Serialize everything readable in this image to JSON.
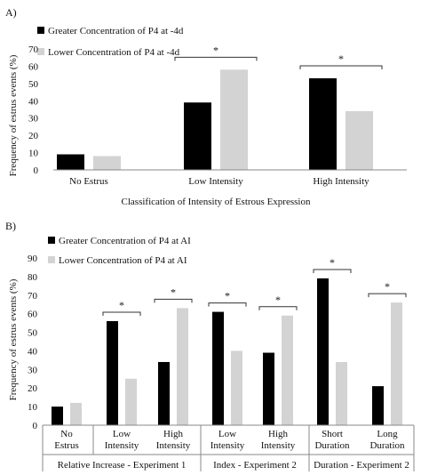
{
  "chart_data": [
    {
      "type": "bar",
      "panel_label": "A)",
      "categories": [
        "No Estrus",
        "Low Intensity",
        "High Intensity"
      ],
      "series": [
        {
          "name": "Greater Concentration of P4 at -4d",
          "values": [
            9,
            39,
            53
          ]
        },
        {
          "name": "Lower Concentration of P4 at -4d",
          "values": [
            8,
            58,
            34
          ]
        }
      ],
      "xlabel": "Classification of Intensity of Estrous Expression",
      "ylabel": "Frequency of estrus events (%)",
      "ylim": [
        0,
        70
      ],
      "yticks": [
        "0",
        "10",
        "20",
        "30",
        "40",
        "50",
        "60",
        "70"
      ],
      "significance": [
        {
          "category": "Low Intensity",
          "label": "*"
        },
        {
          "category": "High Intensity",
          "label": "*"
        }
      ],
      "legend_position": "top-left",
      "grid": false
    },
    {
      "type": "bar",
      "panel_label": "B)",
      "categories": [
        "No Estrus",
        "Low Intensity",
        "High Intensity",
        "Low Intensity",
        "High Intensity",
        "Short Duration",
        "Long Duration"
      ],
      "groups": [
        {
          "label": "Relative Increase - Experiment 1",
          "categories": [
            "No Estrus",
            "Low Intensity",
            "High Intensity"
          ]
        },
        {
          "label": "Index - Experiment 2",
          "categories": [
            "Low Intensity",
            "High Intensity"
          ]
        },
        {
          "label": "Duration - Experiment 2",
          "categories": [
            "Short Duration",
            "Long Duration"
          ]
        }
      ],
      "series": [
        {
          "name": "Greater Concentration of P4 at AI",
          "values": [
            10,
            56,
            34,
            61,
            39,
            79,
            21
          ]
        },
        {
          "name": "Lower Concentration of P4 at AI",
          "values": [
            12,
            25,
            63,
            40,
            59,
            34,
            66
          ]
        }
      ],
      "xlabel": "",
      "ylabel": "Frequency of estrus events (%)",
      "ylim": [
        0,
        90
      ],
      "yticks": [
        "0",
        "10",
        "20",
        "30",
        "40",
        "50",
        "60",
        "70",
        "80",
        "90"
      ],
      "significance": [
        {
          "category_index": 1,
          "label": "*"
        },
        {
          "category_index": 2,
          "label": "*"
        },
        {
          "category_index": 3,
          "label": "*"
        },
        {
          "category_index": 4,
          "label": "*"
        },
        {
          "category_index": 5,
          "label": "*"
        },
        {
          "category_index": 6,
          "label": "*"
        }
      ],
      "legend_position": "top-left",
      "grid": false
    }
  ],
  "colors": {
    "series_dark": "#000000",
    "series_light": "#d3d3d3",
    "axis": "#8a8a8a",
    "bracket": "#333333"
  }
}
